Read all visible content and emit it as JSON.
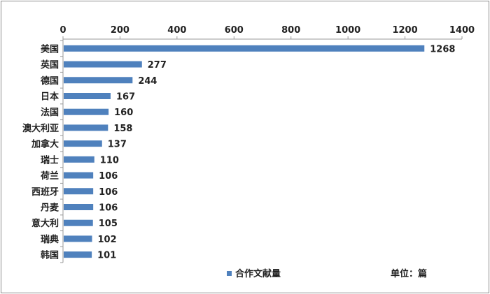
{
  "chart_data": {
    "type": "bar",
    "orientation": "horizontal",
    "categories": [
      "美国",
      "英国",
      "德国",
      "日本",
      "法国",
      "澳大利亚",
      "加拿大",
      "瑞士",
      "荷兰",
      "西班牙",
      "丹麦",
      "意大利",
      "瑞典",
      "韩国"
    ],
    "series": [
      {
        "name": "合作文献量",
        "values": [
          1268,
          277,
          244,
          167,
          160,
          158,
          137,
          110,
          106,
          106,
          106,
          105,
          102,
          101
        ],
        "color": "#4f81bd"
      }
    ],
    "xlim": [
      0,
      1400
    ],
    "xticks": [
      0,
      200,
      400,
      600,
      800,
      1000,
      1200,
      1400
    ],
    "x_axis_position": "top",
    "grid": false,
    "legend_position": "bottom",
    "data_labels": true
  },
  "unit_label": "单位：篇"
}
